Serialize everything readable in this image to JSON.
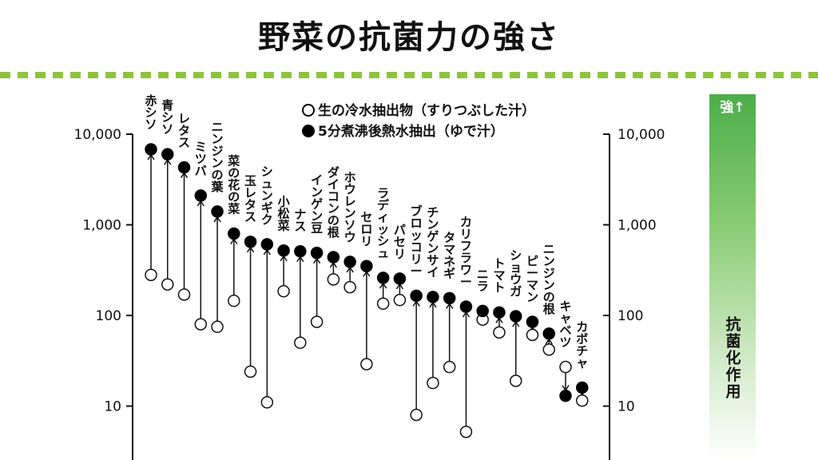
{
  "title": "野菜の抗菌力の強さ",
  "legend": {
    "raw": "生の冷水抽出物（すりつぶした汁）",
    "boiled": "5分煮沸後熱水抽出（ゆで汁）"
  },
  "side_bar": {
    "top_label": "強↑",
    "label": "抗菌化作用",
    "color_top": "#4cae49"
  },
  "chart_data": {
    "type": "dot-range",
    "y_scale": "log",
    "ylim": [
      3,
      10000
    ],
    "y_ticks": [
      {
        "value": 10000,
        "label": "10,000"
      },
      {
        "value": 1000,
        "label": "1,000"
      },
      {
        "value": 100,
        "label": "100"
      },
      {
        "value": 10,
        "label": "10"
      }
    ],
    "series": [
      {
        "name": "生の冷水抽出物（すりつぶした汁）",
        "marker": "open-circle"
      },
      {
        "name": "5分煮沸後熱水抽出（ゆで汁）",
        "marker": "filled-circle"
      }
    ],
    "items": [
      {
        "label": "赤シソ",
        "raw": 280,
        "boiled": 6800
      },
      {
        "label": "青シソ",
        "raw": 220,
        "boiled": 6000
      },
      {
        "label": "レタス",
        "raw": 170,
        "boiled": 4300
      },
      {
        "label": "ミツバ",
        "raw": 80,
        "boiled": 2100
      },
      {
        "label": "ニンジンの葉",
        "raw": 75,
        "boiled": 1400
      },
      {
        "label": "菜の花の菜",
        "raw": 145,
        "boiled": 800
      },
      {
        "label": "玉レタス",
        "raw": 24,
        "boiled": 650
      },
      {
        "label": "シュンギク",
        "raw": 11,
        "boiled": 610
      },
      {
        "label": "小松菜",
        "raw": 185,
        "boiled": 520
      },
      {
        "label": "ナス",
        "raw": 50,
        "boiled": 510
      },
      {
        "label": "インゲン豆",
        "raw": 85,
        "boiled": 490
      },
      {
        "label": "ダイコンの根",
        "raw": 250,
        "boiled": 440
      },
      {
        "label": "ホウレンソウ",
        "raw": 205,
        "boiled": 390
      },
      {
        "label": "セロリ",
        "raw": 29,
        "boiled": 350
      },
      {
        "label": "ラディッシュ",
        "raw": 135,
        "boiled": 260
      },
      {
        "label": "パセリ",
        "raw": 148,
        "boiled": 255
      },
      {
        "label": "ブロッコリー",
        "raw": 8,
        "boiled": 165
      },
      {
        "label": "チンゲンサイ",
        "raw": 18,
        "boiled": 160
      },
      {
        "label": "タマネギ",
        "raw": 27,
        "boiled": 155
      },
      {
        "label": "カリフラワー",
        "raw": 5.2,
        "boiled": 125
      },
      {
        "label": "ニラ",
        "raw": 90,
        "boiled": 112
      },
      {
        "label": "トマト",
        "raw": 65,
        "boiled": 108
      },
      {
        "label": "ショウガ",
        "raw": 19,
        "boiled": 98
      },
      {
        "label": "ピーマン",
        "raw": 61,
        "boiled": 85
      },
      {
        "label": "ニンジンの根",
        "raw": 42,
        "boiled": 63
      },
      {
        "label": "キャベツ",
        "raw": 27,
        "boiled": 13
      },
      {
        "label": "カボチャ",
        "raw": 11.5,
        "boiled": 16
      }
    ]
  }
}
